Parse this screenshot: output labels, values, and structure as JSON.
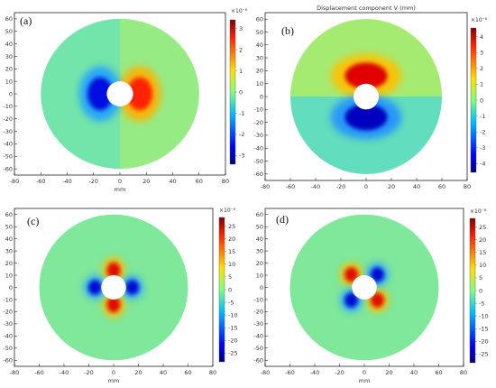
{
  "figure": {
    "panels": [
      {
        "label": "(a)",
        "title": "",
        "xlabel": "mm",
        "x_ticks": [
          "-80",
          "-60",
          "-40",
          "-20",
          "0",
          "20",
          "40",
          "60",
          "80"
        ],
        "y_ticks": [
          "60",
          "50",
          "40",
          "30",
          "20",
          "10",
          "0",
          "-10",
          "-20",
          "-30",
          "-40",
          "-50",
          "-60"
        ],
        "colorbar": {
          "exponent": "×10⁻⁶",
          "ticks": [
            "3",
            "2",
            "1",
            "0",
            "-1",
            "-2",
            "-3"
          ]
        },
        "field": "U"
      },
      {
        "label": "(b)",
        "title": "Displacement component V (mm)",
        "xlabel": "",
        "x_ticks": [
          "-80",
          "-60",
          "-40",
          "-20",
          "0",
          "20",
          "40",
          "60",
          "80"
        ],
        "y_ticks": [
          "60",
          "50",
          "40",
          "30",
          "20",
          "10",
          "0",
          "-10",
          "-20",
          "-30",
          "-40",
          "-50",
          "-60"
        ],
        "colorbar": {
          "exponent": "×10⁻⁶",
          "ticks": [
            "4",
            "3",
            "2",
            "1",
            "0",
            "-1",
            "-2",
            "-3",
            "-4"
          ]
        },
        "field": "V"
      },
      {
        "label": "(c)",
        "title": "",
        "xlabel": "mm",
        "x_ticks": [
          "-80",
          "-60",
          "-40",
          "-20",
          "0",
          "20",
          "40",
          "60",
          "80"
        ],
        "y_ticks": [
          "60",
          "50",
          "40",
          "30",
          "20",
          "10",
          "0",
          "-10",
          "-20",
          "-30",
          "-40",
          "-50",
          "-60"
        ],
        "colorbar": {
          "exponent": "×10⁻⁸",
          "ticks": [
            "25",
            "20",
            "15",
            "10",
            "5",
            "0",
            "-5",
            "-10",
            "-15",
            "-20",
            "-25"
          ]
        },
        "field": "quad"
      },
      {
        "label": "(d)",
        "title": "",
        "xlabel": "mm",
        "x_ticks": [
          "-80",
          "-60",
          "-40",
          "-20",
          "0",
          "20",
          "40",
          "60",
          "80"
        ],
        "y_ticks": [
          "60",
          "50",
          "40",
          "30",
          "20",
          "10",
          "0",
          "-10",
          "-20",
          "-30",
          "-40",
          "-50",
          "-60"
        ],
        "colorbar": {
          "exponent": "×10⁻⁸",
          "ticks": [
            "25",
            "20",
            "15",
            "10",
            "5",
            "0",
            "-5",
            "-10",
            "-15",
            "-20",
            "-25"
          ]
        },
        "field": "quad45"
      }
    ]
  },
  "chart_data": [
    {
      "type": "heatmap",
      "label": "(a)",
      "title": "",
      "xlabel": "mm",
      "ylabel": "",
      "xlim": [
        -80,
        80
      ],
      "ylim": [
        -65,
        65
      ],
      "domain": {
        "outer_radius_mm": 60,
        "hole_radius_mm": 10
      },
      "colorbar_range": [
        -3.5,
        3.5
      ],
      "colorbar_scale": "×10⁻⁶",
      "extrema": [
        {
          "value": 3.5,
          "location": "right of hole"
        },
        {
          "value": -3.5,
          "location": "left of hole"
        }
      ]
    },
    {
      "type": "heatmap",
      "label": "(b)",
      "title": "Displacement component V (mm)",
      "xlabel": "",
      "ylabel": "",
      "xlim": [
        -80,
        80
      ],
      "ylim": [
        -65,
        65
      ],
      "domain": {
        "outer_radius_mm": 60,
        "hole_radius_mm": 10
      },
      "colorbar_range": [
        -4.5,
        4.5
      ],
      "colorbar_scale": "×10⁻⁶",
      "extrema": [
        {
          "value": 4.5,
          "location": "above hole"
        },
        {
          "value": -4.5,
          "location": "below hole"
        }
      ]
    },
    {
      "type": "heatmap",
      "label": "(c)",
      "title": "",
      "xlabel": "mm",
      "ylabel": "",
      "xlim": [
        -80,
        80
      ],
      "ylim": [
        -65,
        65
      ],
      "domain": {
        "outer_radius_mm": 60,
        "hole_radius_mm": 10
      },
      "colorbar_range": [
        -27,
        27
      ],
      "colorbar_scale": "×10⁻⁸",
      "extrema": [
        {
          "value": 27,
          "location": "above and below hole"
        },
        {
          "value": -27,
          "location": "left and right of hole"
        }
      ]
    },
    {
      "type": "heatmap",
      "label": "(d)",
      "title": "",
      "xlabel": "mm",
      "ylabel": "",
      "xlim": [
        -80,
        80
      ],
      "ylim": [
        -65,
        65
      ],
      "domain": {
        "outer_radius_mm": 60,
        "hole_radius_mm": 10
      },
      "colorbar_range": [
        -27,
        27
      ],
      "colorbar_scale": "×10⁻⁸",
      "extrema": [
        {
          "value": 27,
          "location": "upper-left and lower-right of hole"
        },
        {
          "value": -27,
          "location": "upper-right and lower-left of hole"
        }
      ]
    }
  ]
}
